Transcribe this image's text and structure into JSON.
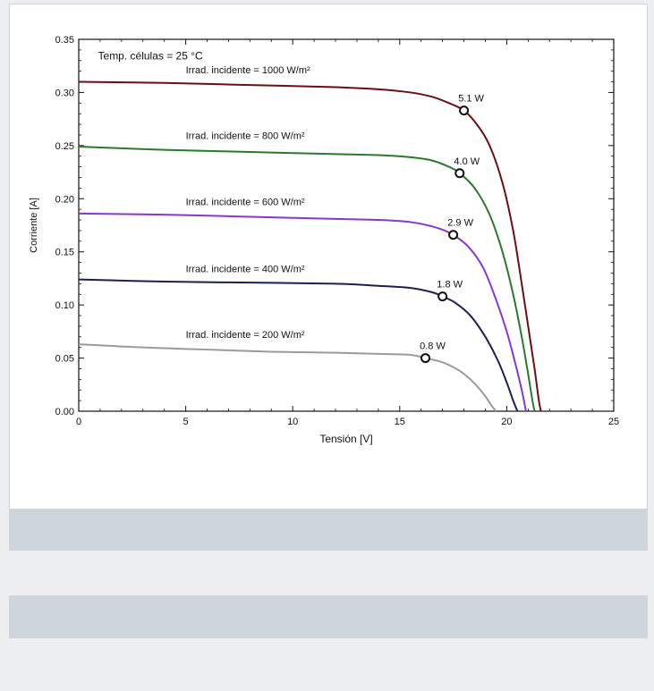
{
  "chart_data": {
    "type": "line",
    "xlabel": "Tensión [V]",
    "ylabel": "Corriente [A]",
    "xlim": [
      0,
      25
    ],
    "ylim": [
      0,
      0.35
    ],
    "x_ticks": [
      0,
      5,
      10,
      15,
      20,
      25
    ],
    "y_ticks": [
      0.0,
      0.05,
      0.1,
      0.15,
      0.2,
      0.25,
      0.3,
      0.35
    ],
    "x_tick_labels": [
      "0",
      "5",
      "10",
      "15",
      "20",
      "25"
    ],
    "y_tick_labels": [
      "0.00",
      "0.05",
      "0.10",
      "0.15",
      "0.20",
      "0.25",
      "0.30",
      "0.35"
    ],
    "grid": false,
    "annotations": [
      {
        "text": "Temp. células = 25 °C",
        "x": 0.9,
        "y": 0.331
      }
    ],
    "series": [
      {
        "name": "Irrad. incidente = 1000 W/m²",
        "color": "#6b0f12",
        "label_at": [
          5.0,
          0.318
        ],
        "points": [
          [
            0,
            0.31
          ],
          [
            4,
            0.309
          ],
          [
            8,
            0.307
          ],
          [
            12,
            0.305
          ],
          [
            14,
            0.303
          ],
          [
            15.5,
            0.3
          ],
          [
            16.5,
            0.296
          ],
          [
            17.3,
            0.29
          ],
          [
            18,
            0.283
          ],
          [
            18.6,
            0.27
          ],
          [
            19.2,
            0.25
          ],
          [
            19.8,
            0.215
          ],
          [
            20.3,
            0.17
          ],
          [
            20.7,
            0.12
          ],
          [
            21.0,
            0.08
          ],
          [
            21.3,
            0.04
          ],
          [
            21.5,
            0.01
          ],
          [
            21.6,
            0.0
          ]
        ],
        "mpp": {
          "x": 18.0,
          "y": 0.283,
          "label": "5.1 W"
        }
      },
      {
        "name": "Irrad. incidente = 800 W/m²",
        "color": "#2a7a2a",
        "label_at": [
          5.0,
          0.256
        ],
        "points": [
          [
            0,
            0.249
          ],
          [
            4,
            0.246
          ],
          [
            8,
            0.244
          ],
          [
            12,
            0.242
          ],
          [
            14,
            0.241
          ],
          [
            15.5,
            0.239
          ],
          [
            16.5,
            0.236
          ],
          [
            17.3,
            0.23
          ],
          [
            17.8,
            0.224
          ],
          [
            18.5,
            0.21
          ],
          [
            19.2,
            0.185
          ],
          [
            19.8,
            0.15
          ],
          [
            20.3,
            0.11
          ],
          [
            20.7,
            0.07
          ],
          [
            21.0,
            0.035
          ],
          [
            21.2,
            0.01
          ],
          [
            21.3,
            0.0
          ]
        ],
        "mpp": {
          "x": 17.8,
          "y": 0.224,
          "label": "4.0 W"
        }
      },
      {
        "name": "Irrad. incidente = 600 W/m²",
        "color": "#8a36d2",
        "label_at": [
          5.0,
          0.194
        ],
        "points": [
          [
            0,
            0.186
          ],
          [
            4,
            0.185
          ],
          [
            8,
            0.183
          ],
          [
            12,
            0.181
          ],
          [
            14,
            0.18
          ],
          [
            15.5,
            0.178
          ],
          [
            16.5,
            0.174
          ],
          [
            17.1,
            0.17
          ],
          [
            17.5,
            0.166
          ],
          [
            18.2,
            0.155
          ],
          [
            18.9,
            0.135
          ],
          [
            19.5,
            0.105
          ],
          [
            20.0,
            0.075
          ],
          [
            20.4,
            0.045
          ],
          [
            20.7,
            0.02
          ],
          [
            20.9,
            0.0
          ]
        ],
        "mpp": {
          "x": 17.5,
          "y": 0.166,
          "label": "2.9 W"
        }
      },
      {
        "name": "Irrad. incidente = 400 W/m²",
        "color": "#1c1f55",
        "label_at": [
          5.0,
          0.131
        ],
        "points": [
          [
            0,
            0.124
          ],
          [
            4,
            0.122
          ],
          [
            8,
            0.121
          ],
          [
            12,
            0.12
          ],
          [
            14,
            0.118
          ],
          [
            15.5,
            0.116
          ],
          [
            16.5,
            0.112
          ],
          [
            17.0,
            0.108
          ],
          [
            17.6,
            0.102
          ],
          [
            18.3,
            0.09
          ],
          [
            19.0,
            0.07
          ],
          [
            19.6,
            0.047
          ],
          [
            20.0,
            0.027
          ],
          [
            20.3,
            0.01
          ],
          [
            20.5,
            0.0
          ]
        ],
        "mpp": {
          "x": 17.0,
          "y": 0.108,
          "label": "1.8 W"
        }
      },
      {
        "name": "Irrad. incidente = 200 W/m²",
        "color": "#9a9a9a",
        "label_at": [
          5.0,
          0.069
        ],
        "points": [
          [
            0,
            0.063
          ],
          [
            3,
            0.06
          ],
          [
            6,
            0.058
          ],
          [
            9,
            0.056
          ],
          [
            12,
            0.055
          ],
          [
            14,
            0.054
          ],
          [
            15.5,
            0.053
          ],
          [
            16.2,
            0.05
          ],
          [
            17.0,
            0.046
          ],
          [
            17.8,
            0.038
          ],
          [
            18.5,
            0.026
          ],
          [
            19.0,
            0.014
          ],
          [
            19.3,
            0.005
          ],
          [
            19.5,
            0.0
          ]
        ],
        "mpp": {
          "x": 16.2,
          "y": 0.05,
          "label": "0.8 W"
        }
      }
    ]
  }
}
